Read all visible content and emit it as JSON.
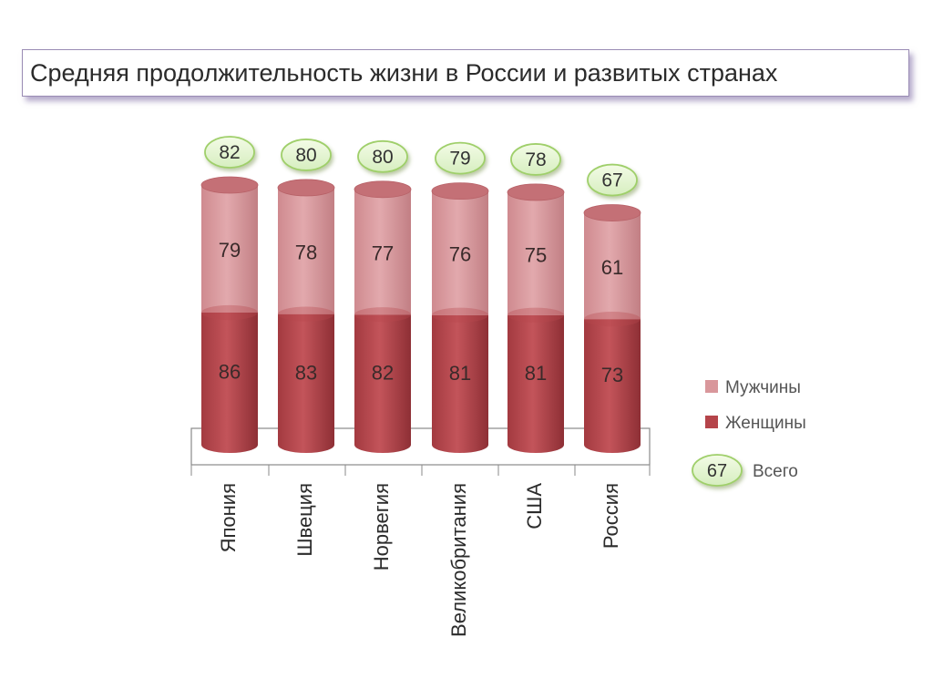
{
  "title": "Средняя продолжительность жизни в России и развитых странах",
  "chart_data": {
    "type": "bar",
    "categories": [
      "Япония",
      "Швеция",
      "Норвегия",
      "Великобритания",
      "США",
      "Россия"
    ],
    "series": [
      {
        "name": "Женщины",
        "values": [
          86,
          83,
          82,
          81,
          81,
          73
        ],
        "color": "#b5444a"
      },
      {
        "name": "Мужчины",
        "values": [
          79,
          78,
          77,
          76,
          75,
          61
        ],
        "color": "#d9979b"
      }
    ],
    "totals": {
      "name": "Всего",
      "values": [
        82,
        80,
        80,
        79,
        78,
        67
      ]
    },
    "legend": {
      "position": "right",
      "items": [
        {
          "label": "Мужчины",
          "color": "#d9979b"
        },
        {
          "label": "Женщины",
          "color": "#b5444a"
        },
        {
          "label": "Всего",
          "sample": "67"
        }
      ]
    },
    "stacked": true,
    "grid": false,
    "data_labels": true
  }
}
